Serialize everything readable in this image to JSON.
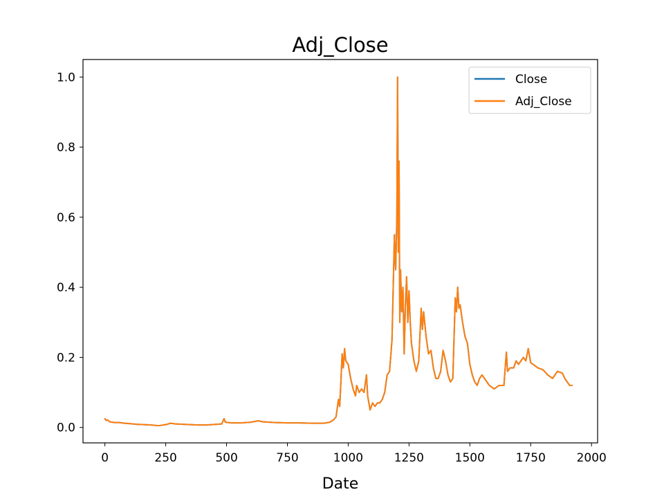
{
  "chart_data": {
    "type": "line",
    "title": "Adj_Close",
    "xlabel": "Date",
    "ylabel": "",
    "xlim": [
      -90,
      2025
    ],
    "ylim": [
      -0.044,
      1.05
    ],
    "x_ticks": [
      0,
      250,
      500,
      750,
      1000,
      1250,
      1500,
      1750,
      2000
    ],
    "x_tick_labels": [
      "0",
      "250",
      "500",
      "750",
      "1000",
      "1250",
      "1500",
      "1750",
      "2000"
    ],
    "y_ticks": [
      0.0,
      0.2,
      0.4,
      0.6,
      0.8,
      1.0
    ],
    "y_tick_labels": [
      "0.0",
      "0.2",
      "0.4",
      "0.6",
      "0.8",
      "1.0"
    ],
    "grid": false,
    "legend_position": "upper right",
    "colors": {
      "close": "#1f77b4",
      "adj_close": "#ff7f0e"
    },
    "series": [
      {
        "name": "Close",
        "color": "#1f77b4",
        "points": [
          [
            0,
            0.025
          ],
          [
            5,
            0.02
          ],
          [
            10,
            0.022
          ],
          [
            20,
            0.016
          ],
          [
            40,
            0.014
          ],
          [
            60,
            0.014
          ],
          [
            80,
            0.012
          ],
          [
            100,
            0.011
          ],
          [
            130,
            0.009
          ],
          [
            160,
            0.008
          ],
          [
            190,
            0.007
          ],
          [
            220,
            0.005
          ],
          [
            250,
            0.008
          ],
          [
            270,
            0.012
          ],
          [
            290,
            0.01
          ],
          [
            320,
            0.009
          ],
          [
            350,
            0.008
          ],
          [
            380,
            0.007
          ],
          [
            420,
            0.007
          ],
          [
            460,
            0.009
          ],
          [
            480,
            0.01
          ],
          [
            490,
            0.025
          ],
          [
            495,
            0.015
          ],
          [
            520,
            0.013
          ],
          [
            560,
            0.013
          ],
          [
            600,
            0.015
          ],
          [
            630,
            0.019
          ],
          [
            650,
            0.016
          ],
          [
            700,
            0.014
          ],
          [
            750,
            0.013
          ],
          [
            800,
            0.013
          ],
          [
            850,
            0.012
          ],
          [
            900,
            0.012
          ],
          [
            925,
            0.015
          ],
          [
            940,
            0.022
          ],
          [
            950,
            0.03
          ],
          [
            960,
            0.08
          ],
          [
            965,
            0.06
          ],
          [
            970,
            0.13
          ],
          [
            975,
            0.21
          ],
          [
            980,
            0.17
          ],
          [
            985,
            0.225
          ],
          [
            990,
            0.19
          ],
          [
            1000,
            0.18
          ],
          [
            1010,
            0.14
          ],
          [
            1020,
            0.11
          ],
          [
            1030,
            0.09
          ],
          [
            1035,
            0.12
          ],
          [
            1045,
            0.1
          ],
          [
            1055,
            0.11
          ],
          [
            1065,
            0.1
          ],
          [
            1075,
            0.15
          ],
          [
            1080,
            0.09
          ],
          [
            1090,
            0.05
          ],
          [
            1100,
            0.07
          ],
          [
            1110,
            0.06
          ],
          [
            1120,
            0.07
          ],
          [
            1130,
            0.07
          ],
          [
            1140,
            0.08
          ],
          [
            1150,
            0.1
          ],
          [
            1160,
            0.15
          ],
          [
            1170,
            0.16
          ],
          [
            1180,
            0.25
          ],
          [
            1185,
            0.4
          ],
          [
            1190,
            0.55
          ],
          [
            1195,
            0.45
          ],
          [
            1200,
            0.6
          ],
          [
            1203,
            1.0
          ],
          [
            1206,
            0.5
          ],
          [
            1209,
            0.76
          ],
          [
            1212,
            0.3
          ],
          [
            1215,
            0.45
          ],
          [
            1220,
            0.33
          ],
          [
            1225,
            0.4
          ],
          [
            1230,
            0.21
          ],
          [
            1235,
            0.35
          ],
          [
            1240,
            0.43
          ],
          [
            1245,
            0.3
          ],
          [
            1250,
            0.39
          ],
          [
            1255,
            0.3
          ],
          [
            1260,
            0.24
          ],
          [
            1270,
            0.19
          ],
          [
            1280,
            0.16
          ],
          [
            1290,
            0.19
          ],
          [
            1300,
            0.34
          ],
          [
            1305,
            0.28
          ],
          [
            1310,
            0.33
          ],
          [
            1320,
            0.26
          ],
          [
            1330,
            0.21
          ],
          [
            1340,
            0.22
          ],
          [
            1350,
            0.17
          ],
          [
            1360,
            0.14
          ],
          [
            1370,
            0.14
          ],
          [
            1380,
            0.16
          ],
          [
            1390,
            0.22
          ],
          [
            1400,
            0.19
          ],
          [
            1410,
            0.15
          ],
          [
            1420,
            0.13
          ],
          [
            1430,
            0.14
          ],
          [
            1440,
            0.37
          ],
          [
            1445,
            0.33
          ],
          [
            1450,
            0.4
          ],
          [
            1455,
            0.34
          ],
          [
            1460,
            0.35
          ],
          [
            1470,
            0.3
          ],
          [
            1480,
            0.26
          ],
          [
            1490,
            0.24
          ],
          [
            1500,
            0.18
          ],
          [
            1510,
            0.15
          ],
          [
            1520,
            0.13
          ],
          [
            1530,
            0.12
          ],
          [
            1540,
            0.14
          ],
          [
            1550,
            0.15
          ],
          [
            1560,
            0.14
          ],
          [
            1580,
            0.12
          ],
          [
            1600,
            0.11
          ],
          [
            1620,
            0.12
          ],
          [
            1640,
            0.12
          ],
          [
            1650,
            0.215
          ],
          [
            1655,
            0.16
          ],
          [
            1665,
            0.17
          ],
          [
            1680,
            0.17
          ],
          [
            1690,
            0.19
          ],
          [
            1700,
            0.18
          ],
          [
            1710,
            0.19
          ],
          [
            1720,
            0.2
          ],
          [
            1730,
            0.19
          ],
          [
            1740,
            0.225
          ],
          [
            1750,
            0.185
          ],
          [
            1760,
            0.18
          ],
          [
            1780,
            0.17
          ],
          [
            1800,
            0.165
          ],
          [
            1820,
            0.15
          ],
          [
            1840,
            0.14
          ],
          [
            1860,
            0.16
          ],
          [
            1880,
            0.155
          ],
          [
            1890,
            0.14
          ],
          [
            1900,
            0.13
          ],
          [
            1910,
            0.12
          ],
          [
            1920,
            0.12
          ]
        ]
      },
      {
        "name": "Adj_Close",
        "color": "#ff7f0e",
        "points": [
          [
            0,
            0.025
          ],
          [
            5,
            0.02
          ],
          [
            10,
            0.022
          ],
          [
            20,
            0.016
          ],
          [
            40,
            0.014
          ],
          [
            60,
            0.014
          ],
          [
            80,
            0.012
          ],
          [
            100,
            0.011
          ],
          [
            130,
            0.009
          ],
          [
            160,
            0.008
          ],
          [
            190,
            0.007
          ],
          [
            220,
            0.005
          ],
          [
            250,
            0.008
          ],
          [
            270,
            0.012
          ],
          [
            290,
            0.01
          ],
          [
            320,
            0.009
          ],
          [
            350,
            0.008
          ],
          [
            380,
            0.007
          ],
          [
            420,
            0.007
          ],
          [
            460,
            0.009
          ],
          [
            480,
            0.01
          ],
          [
            490,
            0.025
          ],
          [
            495,
            0.015
          ],
          [
            520,
            0.013
          ],
          [
            560,
            0.013
          ],
          [
            600,
            0.015
          ],
          [
            630,
            0.019
          ],
          [
            650,
            0.016
          ],
          [
            700,
            0.014
          ],
          [
            750,
            0.013
          ],
          [
            800,
            0.013
          ],
          [
            850,
            0.012
          ],
          [
            900,
            0.012
          ],
          [
            925,
            0.015
          ],
          [
            940,
            0.022
          ],
          [
            950,
            0.03
          ],
          [
            960,
            0.08
          ],
          [
            965,
            0.06
          ],
          [
            970,
            0.13
          ],
          [
            975,
            0.21
          ],
          [
            980,
            0.17
          ],
          [
            985,
            0.225
          ],
          [
            990,
            0.19
          ],
          [
            1000,
            0.18
          ],
          [
            1010,
            0.14
          ],
          [
            1020,
            0.11
          ],
          [
            1030,
            0.09
          ],
          [
            1035,
            0.12
          ],
          [
            1045,
            0.1
          ],
          [
            1055,
            0.11
          ],
          [
            1065,
            0.1
          ],
          [
            1075,
            0.15
          ],
          [
            1080,
            0.09
          ],
          [
            1090,
            0.05
          ],
          [
            1100,
            0.07
          ],
          [
            1110,
            0.06
          ],
          [
            1120,
            0.07
          ],
          [
            1130,
            0.07
          ],
          [
            1140,
            0.08
          ],
          [
            1150,
            0.1
          ],
          [
            1160,
            0.15
          ],
          [
            1170,
            0.16
          ],
          [
            1180,
            0.25
          ],
          [
            1185,
            0.4
          ],
          [
            1190,
            0.55
          ],
          [
            1195,
            0.45
          ],
          [
            1200,
            0.6
          ],
          [
            1203,
            1.0
          ],
          [
            1206,
            0.5
          ],
          [
            1209,
            0.76
          ],
          [
            1212,
            0.3
          ],
          [
            1215,
            0.45
          ],
          [
            1220,
            0.33
          ],
          [
            1225,
            0.4
          ],
          [
            1230,
            0.21
          ],
          [
            1235,
            0.35
          ],
          [
            1240,
            0.43
          ],
          [
            1245,
            0.3
          ],
          [
            1250,
            0.39
          ],
          [
            1255,
            0.3
          ],
          [
            1260,
            0.24
          ],
          [
            1270,
            0.19
          ],
          [
            1280,
            0.16
          ],
          [
            1290,
            0.19
          ],
          [
            1300,
            0.34
          ],
          [
            1305,
            0.28
          ],
          [
            1310,
            0.33
          ],
          [
            1320,
            0.26
          ],
          [
            1330,
            0.21
          ],
          [
            1340,
            0.22
          ],
          [
            1350,
            0.17
          ],
          [
            1360,
            0.14
          ],
          [
            1370,
            0.14
          ],
          [
            1380,
            0.16
          ],
          [
            1390,
            0.22
          ],
          [
            1400,
            0.19
          ],
          [
            1410,
            0.15
          ],
          [
            1420,
            0.13
          ],
          [
            1430,
            0.14
          ],
          [
            1440,
            0.37
          ],
          [
            1445,
            0.33
          ],
          [
            1450,
            0.4
          ],
          [
            1455,
            0.34
          ],
          [
            1460,
            0.35
          ],
          [
            1470,
            0.3
          ],
          [
            1480,
            0.26
          ],
          [
            1490,
            0.24
          ],
          [
            1500,
            0.18
          ],
          [
            1510,
            0.15
          ],
          [
            1520,
            0.13
          ],
          [
            1530,
            0.12
          ],
          [
            1540,
            0.14
          ],
          [
            1550,
            0.15
          ],
          [
            1560,
            0.14
          ],
          [
            1580,
            0.12
          ],
          [
            1600,
            0.11
          ],
          [
            1620,
            0.12
          ],
          [
            1640,
            0.12
          ],
          [
            1650,
            0.215
          ],
          [
            1655,
            0.16
          ],
          [
            1665,
            0.17
          ],
          [
            1680,
            0.17
          ],
          [
            1690,
            0.19
          ],
          [
            1700,
            0.18
          ],
          [
            1710,
            0.19
          ],
          [
            1720,
            0.2
          ],
          [
            1730,
            0.19
          ],
          [
            1740,
            0.225
          ],
          [
            1750,
            0.185
          ],
          [
            1760,
            0.18
          ],
          [
            1780,
            0.17
          ],
          [
            1800,
            0.165
          ],
          [
            1820,
            0.15
          ],
          [
            1840,
            0.14
          ],
          [
            1860,
            0.16
          ],
          [
            1880,
            0.155
          ],
          [
            1890,
            0.14
          ],
          [
            1900,
            0.13
          ],
          [
            1910,
            0.12
          ],
          [
            1920,
            0.12
          ]
        ]
      }
    ]
  }
}
